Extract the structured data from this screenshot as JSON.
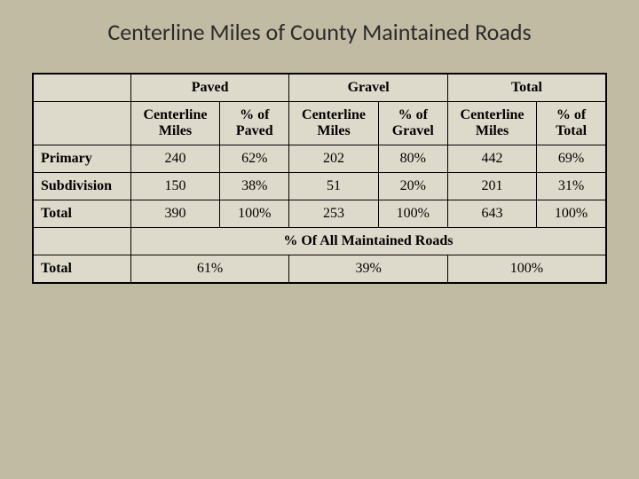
{
  "title": "Centerline Miles of County Maintained Roads",
  "colors": {
    "background": "#c1bba4",
    "table_bg": "#dedacb",
    "border": "#000000",
    "text": "#000000",
    "title_text": "#2a2a2a"
  },
  "typography": {
    "title_fontsize": 26,
    "table_fontsize": 16,
    "title_family": "Calibri",
    "table_family": "Times New Roman"
  },
  "groups": {
    "paved": {
      "label": "Paved",
      "sub_cm": "Centerline Miles",
      "sub_pct": "% of Paved"
    },
    "gravel": {
      "label": "Gravel",
      "sub_cm": "Centerline Miles",
      "sub_pct": "% of Gravel"
    },
    "total": {
      "label": "Total",
      "sub_cm": "Centerline Miles",
      "sub_pct": "% of Total"
    }
  },
  "rows": {
    "primary": {
      "label": "Primary",
      "paved_cm": "240",
      "paved_pct": "62%",
      "gravel_cm": "202",
      "gravel_pct": "80%",
      "total_cm": "442",
      "total_pct": "69%"
    },
    "subdivision": {
      "label": "Subdivision",
      "paved_cm": "150",
      "paved_pct": "38%",
      "gravel_cm": "51",
      "gravel_pct": "20%",
      "total_cm": "201",
      "total_pct": "31%"
    },
    "total": {
      "label": "Total",
      "paved_cm": "390",
      "paved_pct": "100%",
      "gravel_cm": "253",
      "gravel_pct": "100%",
      "total_cm": "643",
      "total_pct": "100%"
    }
  },
  "pct_row_label": "% Of All Maintained Roads",
  "pct_row": {
    "label": "Total",
    "paved": "61%",
    "gravel": "39%",
    "total": "100%"
  }
}
